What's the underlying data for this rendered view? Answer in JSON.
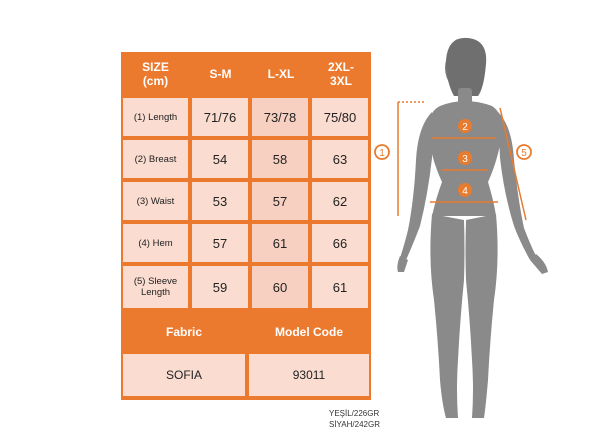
{
  "table": {
    "headers": [
      "SIZE\n(cm)",
      "S-M",
      "L-XL",
      "2XL-\n3XL"
    ],
    "rows": [
      {
        "label": "(1) Length",
        "values": [
          "71/76",
          "73/78",
          "75/80"
        ]
      },
      {
        "label": "(2) Breast",
        "values": [
          "54",
          "58",
          "63"
        ]
      },
      {
        "label": "(3) Waist",
        "values": [
          "53",
          "57",
          "62"
        ]
      },
      {
        "label": "(4) Hem",
        "values": [
          "57",
          "61",
          "66"
        ]
      },
      {
        "label": "(5) Sleeve\nLength",
        "values": [
          "59",
          "60",
          "61"
        ]
      }
    ],
    "fabric_label": "Fabric",
    "model_code_label": "Model Code",
    "fabric_value": "SOFIA",
    "model_code_value": "93011"
  },
  "weights": [
    "YEŞİL/226GR",
    "SİYAH/242GR"
  ],
  "figure": {
    "markers": [
      "1",
      "2",
      "3",
      "4",
      "5"
    ]
  },
  "colors": {
    "accent": "#ec7a2e",
    "cell": "#fadcd0",
    "silhouette": "#8a8a8a"
  }
}
